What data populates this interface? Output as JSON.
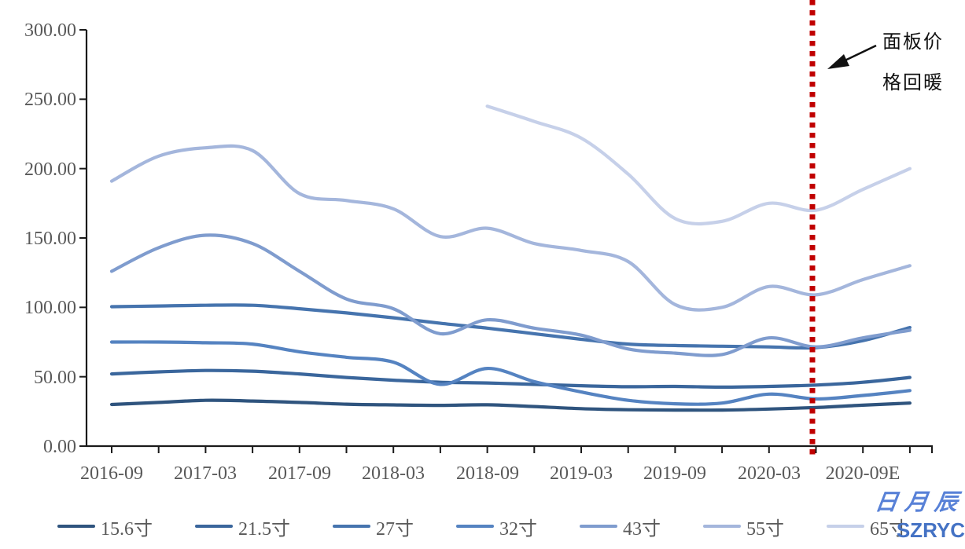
{
  "chart_data": {
    "type": "line",
    "title": "",
    "xlabel": "",
    "ylabel": "",
    "grid": false,
    "legend_position": "bottom",
    "ylim": [
      0,
      300
    ],
    "y_tick_labels": [
      "300.00",
      "250.00",
      "200.00",
      "150.00",
      "100.00",
      "50.00",
      "0.00"
    ],
    "x_tick_labels": [
      "2016-09",
      "2017-03",
      "2017-09",
      "2018-03",
      "2018-09",
      "2019-03",
      "2019-09",
      "2020-03",
      "2020-09E"
    ],
    "x_points": [
      "2016-09",
      "2016-12",
      "2017-03",
      "2017-06",
      "2017-09",
      "2017-12",
      "2018-03",
      "2018-06",
      "2018-09",
      "2018-12",
      "2019-03",
      "2019-06",
      "2019-09",
      "2019-12",
      "2020-03",
      "2020-06",
      "2020-09",
      "2020-12"
    ],
    "series": [
      {
        "name": "15.6寸",
        "color": "#2f547e",
        "values": [
          30,
          31.5,
          33,
          32.5,
          31.5,
          30.2,
          29.7,
          29.4,
          29.8,
          28.5,
          27,
          26.2,
          26,
          26,
          26.7,
          27.8,
          29.5,
          31
        ]
      },
      {
        "name": "21.5寸",
        "color": "#3a669c",
        "values": [
          52,
          53.5,
          54.5,
          54,
          52,
          49.5,
          47.5,
          46,
          45.5,
          44.5,
          43.5,
          42.8,
          43,
          42.5,
          43,
          44,
          46,
          49.5
        ]
      },
      {
        "name": "27寸",
        "color": "#4674ae",
        "values": [
          100.5,
          101,
          101.5,
          101.5,
          99,
          96,
          92.5,
          88.5,
          85,
          81,
          77,
          73.5,
          72.5,
          72,
          71.5,
          71,
          76,
          85.5
        ]
      },
      {
        "name": "32寸",
        "color": "#5583c1",
        "values": [
          75,
          75,
          74.5,
          73.5,
          68,
          64,
          60.5,
          44.5,
          56,
          46.5,
          39,
          33,
          30.5,
          31,
          37.5,
          34,
          36.5,
          40
        ]
      },
      {
        "name": "43寸",
        "color": "#7f9cce",
        "values": [
          126,
          143,
          152,
          146,
          126,
          106,
          99,
          81,
          91,
          85,
          80,
          70,
          67,
          66,
          78,
          71.5,
          78,
          83.5
        ]
      },
      {
        "name": "55寸",
        "color": "#a4b6dc",
        "values": [
          191,
          209,
          215,
          213,
          182,
          177,
          171,
          151,
          157,
          146,
          141,
          133,
          102,
          100,
          115,
          109,
          120,
          130
        ]
      },
      {
        "name": "65寸",
        "color": "#c6d0e9",
        "values": [
          null,
          null,
          null,
          null,
          null,
          null,
          null,
          null,
          245,
          234,
          222,
          196,
          164,
          162,
          175,
          170,
          185,
          200
        ]
      }
    ],
    "reference_line": {
      "label_position": "2020-05",
      "color": "#c00000",
      "style": "dotted"
    }
  },
  "annotation": {
    "line1": "面板价",
    "line2": "格回暖"
  },
  "watermark": {
    "line1": "日月辰",
    "line2": "SZRYC",
    "color": "#4472c4"
  }
}
